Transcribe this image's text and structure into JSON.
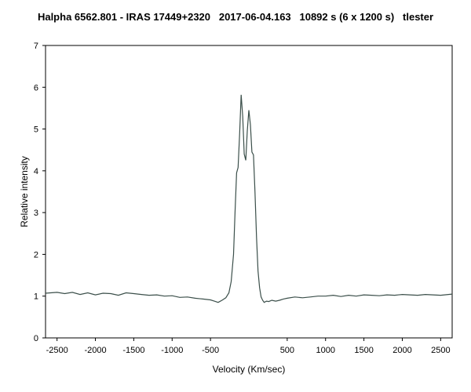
{
  "chart_data": {
    "type": "line",
    "title": "Halpha 6562.801 - IRAS 17449+2320   2017-06-04.163   10892 s (6 x 1200 s)   tlester",
    "xlabel": "Velocity (Km/sec)",
    "ylabel": "Relative intensity",
    "xlim": [
      -2650,
      2650
    ],
    "ylim": [
      0,
      7
    ],
    "xticks": [
      -2500,
      -2000,
      -1500,
      -1000,
      -500,
      500,
      1000,
      1500,
      2000,
      2500
    ],
    "yticks": [
      0,
      1,
      2,
      3,
      4,
      5,
      6,
      7
    ],
    "grid": false,
    "series_color": "#3b4f4a",
    "series": [
      {
        "x": [
          -2650,
          -2500,
          -2400,
          -2300,
          -2200,
          -2100,
          -2000,
          -1900,
          -1800,
          -1700,
          -1600,
          -1500,
          -1400,
          -1300,
          -1200,
          -1100,
          -1000,
          -900,
          -800,
          -700,
          -600,
          -500,
          -450,
          -400,
          -350,
          -300,
          -260,
          -230,
          -200,
          -180,
          -160,
          -140,
          -120,
          -100,
          -80,
          -60,
          -40,
          -20,
          0,
          20,
          40,
          60,
          80,
          100,
          120,
          140,
          160,
          180,
          200,
          230,
          260,
          300,
          350,
          400,
          450,
          500,
          600,
          700,
          800,
          900,
          1000,
          1100,
          1200,
          1300,
          1400,
          1500,
          1600,
          1700,
          1800,
          1900,
          2000,
          2100,
          2200,
          2300,
          2400,
          2500,
          2650
        ],
        "y": [
          1.07,
          1.09,
          1.06,
          1.09,
          1.04,
          1.08,
          1.03,
          1.07,
          1.06,
          1.02,
          1.08,
          1.06,
          1.04,
          1.02,
          1.03,
          1.0,
          1.01,
          0.97,
          0.98,
          0.95,
          0.93,
          0.91,
          0.88,
          0.85,
          0.9,
          0.96,
          1.08,
          1.35,
          2.0,
          3.0,
          3.95,
          4.08,
          4.9,
          5.82,
          5.3,
          4.4,
          4.25,
          4.95,
          5.45,
          5.1,
          4.45,
          4.38,
          3.5,
          2.4,
          1.6,
          1.2,
          0.98,
          0.9,
          0.85,
          0.88,
          0.87,
          0.9,
          0.88,
          0.9,
          0.93,
          0.95,
          0.98,
          0.96,
          0.98,
          1.0,
          1.0,
          1.02,
          0.99,
          1.02,
          1.0,
          1.03,
          1.02,
          1.01,
          1.03,
          1.02,
          1.04,
          1.03,
          1.02,
          1.04,
          1.03,
          1.02,
          1.05
        ]
      }
    ]
  }
}
